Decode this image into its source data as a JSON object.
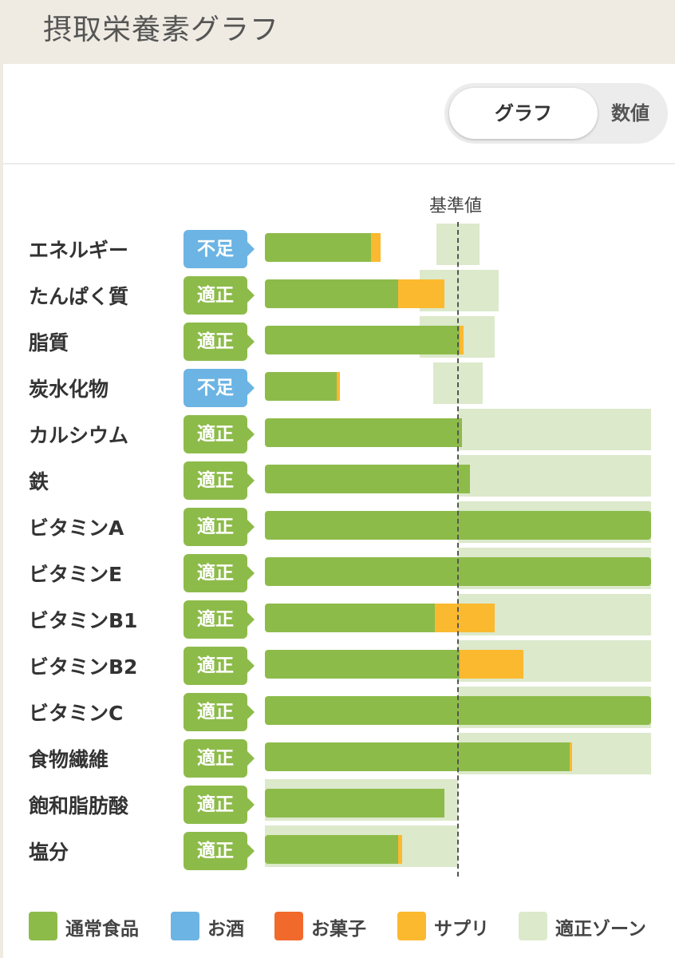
{
  "header": {
    "title": "摂取栄養素グラフ"
  },
  "toggle": {
    "graph_label": "グラフ",
    "value_label": "数値"
  },
  "colors": {
    "normal_food": "#8dbb4a",
    "alcohol": "#6cb4e3",
    "sweets": "#f26a2b",
    "supplement": "#fbb92f",
    "zone": "#dce9cb",
    "status_low": "#6cb4e3",
    "status_ok": "#8dbb4a"
  },
  "chart_data": {
    "type": "bar",
    "orientation": "horizontal",
    "stacked": true,
    "reference_label": "基準値",
    "reference_value": 100,
    "x_range": [
      0,
      200
    ],
    "legend": [
      {
        "name": "通常食品",
        "key": "normal_food"
      },
      {
        "name": "お酒",
        "key": "alcohol"
      },
      {
        "name": "お菓子",
        "key": "sweets"
      },
      {
        "name": "サプリ",
        "key": "supplement"
      },
      {
        "name": "適正ゾーン",
        "key": "zone"
      }
    ],
    "legend_position": "bottom",
    "rows": [
      {
        "name": "エネルギー",
        "status": "不足",
        "status_key": "status_low",
        "normal_food": 55,
        "supplement": 5,
        "zone": [
          89,
          111
        ]
      },
      {
        "name": "たんぱく質",
        "status": "適正",
        "status_key": "status_ok",
        "normal_food": 69,
        "supplement": 24,
        "zone": [
          80,
          121
        ]
      },
      {
        "name": "脂質",
        "status": "適正",
        "status_key": "status_ok",
        "normal_food": 101,
        "supplement": 2,
        "zone": [
          80,
          119
        ]
      },
      {
        "name": "炭水化物",
        "status": "不足",
        "status_key": "status_low",
        "normal_food": 37,
        "supplement": 2,
        "zone": [
          87,
          113
        ]
      },
      {
        "name": "カルシウム",
        "status": "適正",
        "status_key": "status_ok",
        "normal_food": 102,
        "supplement": 0,
        "zone": [
          100,
          200
        ]
      },
      {
        "name": "鉄",
        "status": "適正",
        "status_key": "status_ok",
        "normal_food": 106,
        "supplement": 0,
        "zone": [
          100,
          200
        ]
      },
      {
        "name": "ビタミンA",
        "status": "適正",
        "status_key": "status_ok",
        "normal_food": 200,
        "supplement": 0,
        "zone": [
          100,
          200
        ]
      },
      {
        "name": "ビタミンE",
        "status": "適正",
        "status_key": "status_ok",
        "normal_food": 200,
        "supplement": 0,
        "zone": [
          100,
          200
        ]
      },
      {
        "name": "ビタミンB1",
        "status": "適正",
        "status_key": "status_ok",
        "normal_food": 88,
        "supplement": 31,
        "zone": [
          100,
          200
        ]
      },
      {
        "name": "ビタミンB2",
        "status": "適正",
        "status_key": "status_ok",
        "normal_food": 101,
        "supplement": 33,
        "zone": [
          100,
          200
        ]
      },
      {
        "name": "ビタミンC",
        "status": "適正",
        "status_key": "status_ok",
        "normal_food": 200,
        "supplement": 0,
        "zone": [
          100,
          200
        ]
      },
      {
        "name": "食物繊維",
        "status": "適正",
        "status_key": "status_ok",
        "normal_food": 158,
        "supplement": 1,
        "zone": [
          100,
          200
        ]
      },
      {
        "name": "飽和脂肪酸",
        "status": "適正",
        "status_key": "status_ok",
        "normal_food": 93,
        "supplement": 0,
        "zone": [
          0,
          100
        ]
      },
      {
        "name": "塩分",
        "status": "適正",
        "status_key": "status_ok",
        "normal_food": 69,
        "supplement": 2,
        "zone": [
          0,
          100
        ]
      }
    ]
  }
}
